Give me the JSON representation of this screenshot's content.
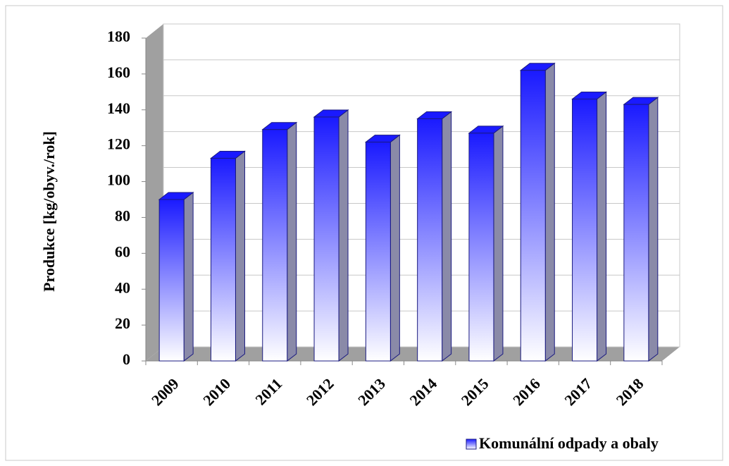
{
  "chart_data": {
    "type": "bar",
    "y_label": "Produkce [kg/obyv./rok]",
    "categories": [
      "2009",
      "2010",
      "2011",
      "2012",
      "2013",
      "2014",
      "2015",
      "2016",
      "2017",
      "2018"
    ],
    "series": [
      {
        "name": "Komunální odpady a obaly",
        "color": "#1a1aff",
        "values": [
          90,
          113,
          129,
          136,
          122,
          135,
          127,
          162,
          146,
          143
        ]
      }
    ],
    "ylim": [
      0,
      180
    ],
    "yticks": [
      0,
      20,
      40,
      60,
      80,
      100,
      120,
      140,
      160,
      180
    ],
    "grid": true,
    "legend": "bottom-right"
  }
}
